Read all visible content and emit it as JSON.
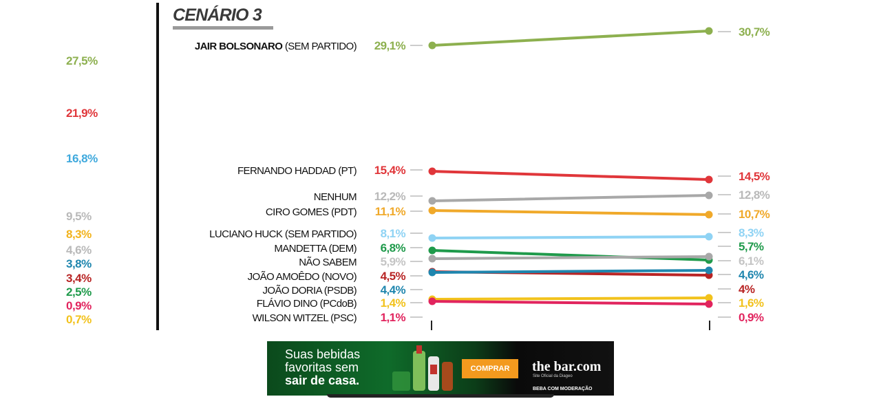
{
  "chart_data": {
    "type": "line",
    "title": "CENÁRIO 3",
    "left_column_values": [
      {
        "text": "27,5%",
        "color": "#8db04f"
      },
      {
        "text": "21,9%",
        "color": "#e0363a"
      },
      {
        "text": "16,8%",
        "color": "#3fa9dd"
      },
      {
        "text": "9,5%",
        "color": "#b9b9b9"
      },
      {
        "text": "8,3%",
        "color": "#f2b31c"
      },
      {
        "text": "4,6%",
        "color": "#b9b9b9"
      },
      {
        "text": "3,8%",
        "color": "#1f86ae"
      },
      {
        "text": "3,4%",
        "color": "#b82424"
      },
      {
        "text": "2,5%",
        "color": "#1f9a4b"
      },
      {
        "text": "0,9%",
        "color": "#e1245e"
      },
      {
        "text": "0,7%",
        "color": "#f2c21c"
      }
    ],
    "series": [
      {
        "name": "JAIR BOLSONARO",
        "suffix": " (SEM PARTIDO)",
        "color": "#8db04f",
        "start": 29.1,
        "end": 30.7,
        "start_label": "29,1%",
        "end_label": "30,7%"
      },
      {
        "name": "FERNANDO HADDAD (PT)",
        "suffix": "",
        "color": "#e0363a",
        "start": 15.4,
        "end": 14.5,
        "start_label": "15,4%",
        "end_label": "14,5%"
      },
      {
        "name": "NENHUM",
        "suffix": "",
        "color": "#a8a8a8",
        "label_color": "#b9b9b9",
        "start": 12.2,
        "end": 12.8,
        "start_label": "12,2%",
        "end_label": "12,8%"
      },
      {
        "name": "CIRO GOMES (PDT)",
        "suffix": "",
        "color": "#f0a92a",
        "start": 11.1,
        "end": 10.7,
        "start_label": "11,1%",
        "end_label": "10,7%"
      },
      {
        "name": "LUCIANO HUCK (SEM PARTIDO)",
        "suffix": "",
        "color": "#8fd3f4",
        "start": 8.1,
        "end": 8.3,
        "start_label": "8,1%",
        "end_label": "8,3%"
      },
      {
        "name": "MANDETTA (DEM)",
        "suffix": "",
        "color": "#1f9a4b",
        "start": 6.8,
        "end": 5.7,
        "start_label": "6,8%",
        "end_label": "5,7%"
      },
      {
        "name": "NÃO SABEM",
        "suffix": "",
        "color": "#a8a8a8",
        "label_color": "#c4c4c4",
        "start": 5.9,
        "end": 6.1,
        "start_label": "5,9%",
        "end_label": "6,1%"
      },
      {
        "name": "JOÃO AMOÊDO (NOVO)",
        "suffix": "",
        "color": "#b82424",
        "start": 4.5,
        "end": 4.0,
        "start_label": "4,5%",
        "end_label": "4%"
      },
      {
        "name": "JOÃO DORIA (PSDB)",
        "suffix": "",
        "color": "#1f86ae",
        "start": 4.4,
        "end": 4.6,
        "start_label": "4,4%",
        "end_label": "4,6%"
      },
      {
        "name": "FLÁVIO DINO (PCdoB)",
        "suffix": "",
        "color": "#f2c21c",
        "start": 1.4,
        "end": 1.6,
        "start_label": "1,4%",
        "end_label": "1,6%"
      },
      {
        "name": "WILSON WITZEL (PSC)",
        "suffix": "",
        "color": "#e1245e",
        "start": 1.1,
        "end": 0.9,
        "start_label": "1,1%",
        "end_label": "0,9%"
      }
    ]
  },
  "ad": {
    "line1": "Suas bebidas",
    "line2": "favoritas sem",
    "line3": "sair de casa.",
    "buy_label": "COMPRAR",
    "brand": "the bar.com",
    "brand_sub": "Site Oficial da Diageo",
    "warning": "BEBA COM MODERAÇÃO",
    "button_color": "#f39a1e"
  }
}
